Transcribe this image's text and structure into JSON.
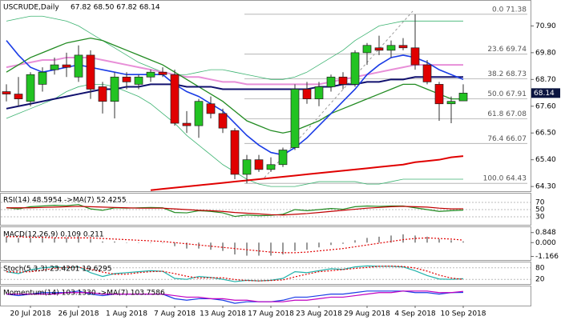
{
  "chart_data": [
    {
      "type": "candlestick",
      "title": "USCRUDE,Daily",
      "subtitle": "67.82 68.50 67.82 68.14",
      "categories": [
        null,
        null,
        "20 Jul 2018",
        null,
        null,
        null,
        "26 Jul 2018",
        null,
        null,
        null,
        "1 Aug 2018",
        null,
        null,
        null,
        "7 Aug 2018",
        null,
        null,
        null,
        "13 Aug 2018",
        null,
        null,
        null,
        "17 Aug 2018",
        null,
        null,
        null,
        "23 Aug 2018",
        null,
        null,
        null,
        "29 Aug 2018",
        null,
        null,
        null,
        "4 Sep 2018",
        null,
        null,
        null,
        "10 Sep 2018"
      ],
      "open": [
        68.2,
        68.1,
        67.8,
        68.5,
        69.1,
        69.3,
        68.8,
        69.7,
        68.4,
        67.8,
        68.8,
        68.5,
        68.8,
        69.0,
        68.9,
        66.9,
        66.8,
        67.7,
        67.3,
        66.6,
        64.8,
        65.4,
        65.0,
        65.2,
        65.9,
        68.3,
        67.9,
        68.4,
        68.8,
        68.5,
        69.8,
        70.0,
        69.9,
        70.1,
        70.0,
        69.3,
        68.5,
        67.7,
        67.82
      ],
      "high": [
        68.5,
        68.8,
        69.0,
        69.2,
        69.6,
        69.8,
        70.1,
        69.9,
        68.6,
        69.0,
        69.0,
        68.9,
        69.1,
        69.2,
        69.1,
        67.4,
        67.9,
        68.0,
        67.5,
        66.7,
        65.6,
        65.6,
        65.5,
        65.9,
        68.5,
        68.6,
        68.6,
        68.9,
        69.0,
        69.9,
        70.2,
        70.5,
        70.3,
        70.4,
        71.38,
        69.5,
        68.6,
        68.0,
        68.5
      ],
      "low": [
        67.8,
        67.6,
        67.6,
        68.2,
        68.9,
        68.8,
        68.6,
        67.9,
        67.3,
        67.1,
        68.3,
        68.3,
        68.6,
        68.8,
        66.8,
        66.5,
        66.3,
        67.1,
        66.5,
        64.6,
        64.43,
        64.9,
        64.9,
        65.1,
        65.8,
        67.7,
        67.6,
        68.2,
        68.3,
        68.4,
        69.3,
        69.7,
        69.6,
        69.9,
        69.1,
        68.5,
        67.0,
        66.9,
        67.82
      ],
      "close": [
        68.1,
        67.9,
        68.9,
        69.0,
        69.3,
        69.2,
        69.7,
        68.3,
        67.8,
        68.8,
        68.6,
        68.8,
        69.0,
        68.9,
        66.9,
        66.8,
        67.8,
        67.3,
        66.7,
        64.8,
        65.4,
        65.0,
        65.2,
        65.8,
        68.3,
        67.9,
        68.4,
        68.8,
        68.5,
        69.8,
        70.1,
        69.9,
        70.1,
        70.0,
        69.3,
        68.6,
        67.7,
        67.8,
        68.14
      ],
      "up_color": "#22c322",
      "down_color": "#e00000",
      "ylim": [
        64.14,
        71.9
      ],
      "yticks": [
        {
          "value": 70.9,
          "label": "70.90"
        },
        {
          "value": 69.8,
          "label": "69.80"
        },
        {
          "value": 68.7,
          "label": "68.70"
        },
        {
          "value": 67.6,
          "label": "67.60"
        },
        {
          "value": 66.5,
          "label": "66.50"
        },
        {
          "value": 65.4,
          "label": "65.40"
        },
        {
          "value": 64.3,
          "label": "64.30"
        }
      ],
      "last_label": "68.14",
      "fib_levels": [
        {
          "value": 71.38,
          "label": "0.0 71.38"
        },
        {
          "value": 69.74,
          "label": "23.6 69.74"
        },
        {
          "value": 68.73,
          "label": "38.2 68.73"
        },
        {
          "value": 67.91,
          "label": "50.0 67.91"
        },
        {
          "value": 67.08,
          "label": "61.8 67.08"
        },
        {
          "value": 66.07,
          "label": "76.4 66.07"
        },
        {
          "value": 64.43,
          "label": "100.0 64.43"
        }
      ],
      "lines": [
        {
          "color": "#3cb371",
          "width": 0.8,
          "values": [
            71.1,
            71.2,
            71.3,
            71.3,
            71.2,
            71.1,
            70.9,
            70.6,
            70.3,
            70.0,
            69.7,
            69.4,
            69.2,
            69.0,
            68.9,
            68.9,
            69.0,
            69.1,
            69.1,
            69.0,
            68.9,
            68.8,
            68.7,
            68.7,
            68.8,
            69.0,
            69.3,
            69.6,
            69.9,
            70.3,
            70.6,
            70.9,
            71.0,
            71.1,
            71.1,
            71.1,
            71.1,
            71.1,
            71.1
          ]
        },
        {
          "color": "#3cb371",
          "width": 0.8,
          "values": [
            67.1,
            67.3,
            67.5,
            67.7,
            67.9,
            68.2,
            68.4,
            68.5,
            68.5,
            68.4,
            68.2,
            68.0,
            67.7,
            67.3,
            66.9,
            66.4,
            66.0,
            65.6,
            65.2,
            64.9,
            64.6,
            64.4,
            64.3,
            64.3,
            64.3,
            64.4,
            64.5,
            64.5,
            64.5,
            64.5,
            64.4,
            64.4,
            64.5,
            64.6,
            64.6,
            64.6,
            64.6,
            64.6,
            64.6
          ]
        },
        {
          "color": "#e88fd8",
          "width": 2,
          "values": [
            69.2,
            69.3,
            69.4,
            69.5,
            69.5,
            69.6,
            69.6,
            69.6,
            69.5,
            69.4,
            69.3,
            69.2,
            69.1,
            69.0,
            68.9,
            68.8,
            68.8,
            68.7,
            68.6,
            68.6,
            68.5,
            68.5,
            68.5,
            68.5,
            68.5,
            68.5,
            68.5,
            68.6,
            68.7,
            68.8,
            68.9,
            69.0,
            69.1,
            69.2,
            69.3,
            69.3,
            69.3,
            69.3,
            69.3
          ]
        },
        {
          "color": "#228b22",
          "width": 1.3,
          "values": [
            69.0,
            69.3,
            69.6,
            69.8,
            70.0,
            70.2,
            70.3,
            70.4,
            70.3,
            70.1,
            69.9,
            69.7,
            69.5,
            69.3,
            69.0,
            68.7,
            68.4,
            68.1,
            67.8,
            67.4,
            67.0,
            66.8,
            66.6,
            66.5,
            66.6,
            66.8,
            67.0,
            67.3,
            67.5,
            67.7,
            67.9,
            68.1,
            68.3,
            68.5,
            68.5,
            68.3,
            68.1,
            67.9,
            67.9
          ]
        },
        {
          "color": "#10106e",
          "width": 2,
          "values": [
            67.5,
            67.6,
            67.7,
            67.8,
            67.9,
            68.0,
            68.1,
            68.2,
            68.3,
            68.3,
            68.4,
            68.4,
            68.5,
            68.5,
            68.5,
            68.4,
            68.4,
            68.4,
            68.3,
            68.3,
            68.3,
            68.3,
            68.3,
            68.3,
            68.3,
            68.3,
            68.4,
            68.4,
            68.5,
            68.5,
            68.6,
            68.6,
            68.7,
            68.7,
            68.8,
            68.8,
            68.8,
            68.8,
            68.8
          ]
        },
        {
          "color": "#1a3ce6",
          "width": 1.6,
          "values": [
            70.3,
            69.7,
            69.2,
            69.0,
            69.1,
            69.2,
            69.3,
            69.2,
            69.1,
            69.0,
            68.9,
            68.9,
            68.9,
            68.9,
            68.5,
            68.2,
            68.0,
            67.7,
            67.4,
            66.9,
            66.4,
            66.0,
            65.7,
            65.6,
            65.9,
            66.3,
            66.8,
            67.3,
            67.8,
            68.3,
            68.9,
            69.3,
            69.6,
            69.7,
            69.6,
            69.4,
            69.1,
            68.9,
            68.7
          ]
        },
        {
          "color": "#e00000",
          "width": 2,
          "values": [
            null,
            null,
            null,
            null,
            null,
            null,
            null,
            null,
            null,
            null,
            null,
            null,
            64.15,
            64.2,
            64.25,
            64.3,
            64.35,
            64.4,
            64.45,
            64.5,
            64.55,
            64.6,
            64.65,
            64.7,
            64.75,
            64.8,
            64.85,
            64.9,
            64.95,
            65.0,
            65.05,
            65.1,
            65.15,
            65.2,
            65.3,
            65.35,
            65.4,
            65.5,
            65.55
          ]
        }
      ]
    },
    {
      "type": "line",
      "title": "RSI(14) 48.5954 ->MA(7) 52.4255",
      "ylim": [
        10,
        90
      ],
      "yticks": [
        70,
        50,
        30
      ],
      "grid": true,
      "series": [
        {
          "color": "#228b22",
          "style": "solid",
          "values": [
            55,
            52,
            58,
            60,
            62,
            61,
            64,
            52,
            48,
            55,
            54,
            55,
            56,
            55,
            42,
            41,
            47,
            45,
            41,
            31,
            35,
            33,
            34,
            37,
            50,
            47,
            50,
            53,
            51,
            58,
            60,
            59,
            60,
            60,
            55,
            50,
            45,
            47,
            48.6
          ]
        },
        {
          "color": "#c00000",
          "style": "solid",
          "values": [
            55,
            55,
            55,
            56,
            57,
            58,
            59,
            58,
            57,
            56,
            55,
            54,
            54,
            54,
            52,
            50,
            48,
            47,
            45,
            42,
            40,
            38,
            36,
            35,
            37,
            39,
            42,
            45,
            48,
            51,
            54,
            56,
            58,
            59,
            58,
            57,
            54,
            52,
            52.4
          ]
        }
      ]
    },
    {
      "type": "line",
      "title": "MACD(12,26,9) 0.109 0.211",
      "ylim": [
        -1.4,
        1.1
      ],
      "yticks": [
        0.848,
        {
          "value": 0,
          "label": "0.000"
        },
        -1.166
      ],
      "grid": false,
      "series": [
        {
          "color": "#555555",
          "style": "bar",
          "values": [
            0.5,
            0.4,
            0.4,
            0.4,
            0.4,
            0.4,
            0.5,
            0.3,
            0.1,
            0.1,
            0.0,
            0.0,
            0.0,
            0.0,
            -0.3,
            -0.5,
            -0.5,
            -0.6,
            -0.7,
            -1.0,
            -1.1,
            -1.1,
            -1.1,
            -1.0,
            -0.7,
            -0.6,
            -0.4,
            -0.2,
            -0.1,
            0.2,
            0.4,
            0.5,
            0.6,
            0.7,
            0.6,
            0.5,
            0.3,
            0.2,
            0.11
          ]
        },
        {
          "color": "#e00000",
          "style": "dotted",
          "values": [
            0.5,
            0.5,
            0.45,
            0.45,
            0.4,
            0.4,
            0.4,
            0.4,
            0.35,
            0.3,
            0.25,
            0.2,
            0.15,
            0.1,
            0.0,
            -0.1,
            -0.2,
            -0.3,
            -0.4,
            -0.5,
            -0.6,
            -0.7,
            -0.8,
            -0.85,
            -0.85,
            -0.8,
            -0.7,
            -0.6,
            -0.5,
            -0.35,
            -0.2,
            -0.05,
            0.1,
            0.25,
            0.35,
            0.4,
            0.35,
            0.3,
            0.21
          ]
        }
      ]
    },
    {
      "type": "line",
      "title": "Stoch(5,3,3) 23.4201 19.6295",
      "ylim": [
        0,
        100
      ],
      "yticks": [
        80,
        20
      ],
      "grid": true,
      "series": [
        {
          "color": "#20b2aa",
          "style": "solid",
          "values": [
            60,
            50,
            70,
            80,
            85,
            80,
            85,
            55,
            35,
            50,
            55,
            60,
            65,
            62,
            25,
            20,
            35,
            30,
            20,
            8,
            15,
            12,
            15,
            25,
            60,
            55,
            65,
            75,
            72,
            85,
            90,
            88,
            88,
            85,
            65,
            40,
            22,
            20,
            23.4
          ]
        },
        {
          "color": "#e00000",
          "style": "dotted",
          "values": [
            60,
            58,
            60,
            67,
            78,
            82,
            83,
            73,
            58,
            47,
            47,
            55,
            60,
            62,
            50,
            36,
            27,
            28,
            28,
            19,
            14,
            12,
            14,
            17,
            33,
            47,
            60,
            65,
            71,
            77,
            82,
            88,
            89,
            87,
            79,
            63,
            42,
            27,
            19.6
          ]
        }
      ]
    },
    {
      "type": "line",
      "title": "Momentum(14) 103.1330 ->MA(7) 103.7586",
      "ylim": [
        95,
        106
      ],
      "grid": false,
      "series": [
        {
          "color": "#1a3ce6",
          "style": "solid",
          "values": [
            102,
            101,
            102,
            103,
            103,
            103,
            104,
            102,
            101,
            102,
            102,
            102,
            102,
            102,
            99,
            98,
            99,
            99,
            98,
            96,
            97,
            97,
            97,
            98,
            100,
            100,
            101,
            102,
            102,
            103,
            104,
            104,
            104,
            104,
            103,
            103,
            102,
            103,
            103.1
          ]
        },
        {
          "color": "#c000c0",
          "style": "solid",
          "values": [
            102,
            102,
            102,
            102,
            102,
            103,
            103,
            103,
            102,
            102,
            102,
            102,
            102,
            102,
            101,
            100,
            100,
            99,
            99,
            98,
            98,
            97,
            97,
            97,
            98,
            98,
            99,
            100,
            100,
            101,
            102,
            103,
            103,
            104,
            104,
            104,
            103,
            103,
            103.8
          ]
        }
      ]
    }
  ]
}
